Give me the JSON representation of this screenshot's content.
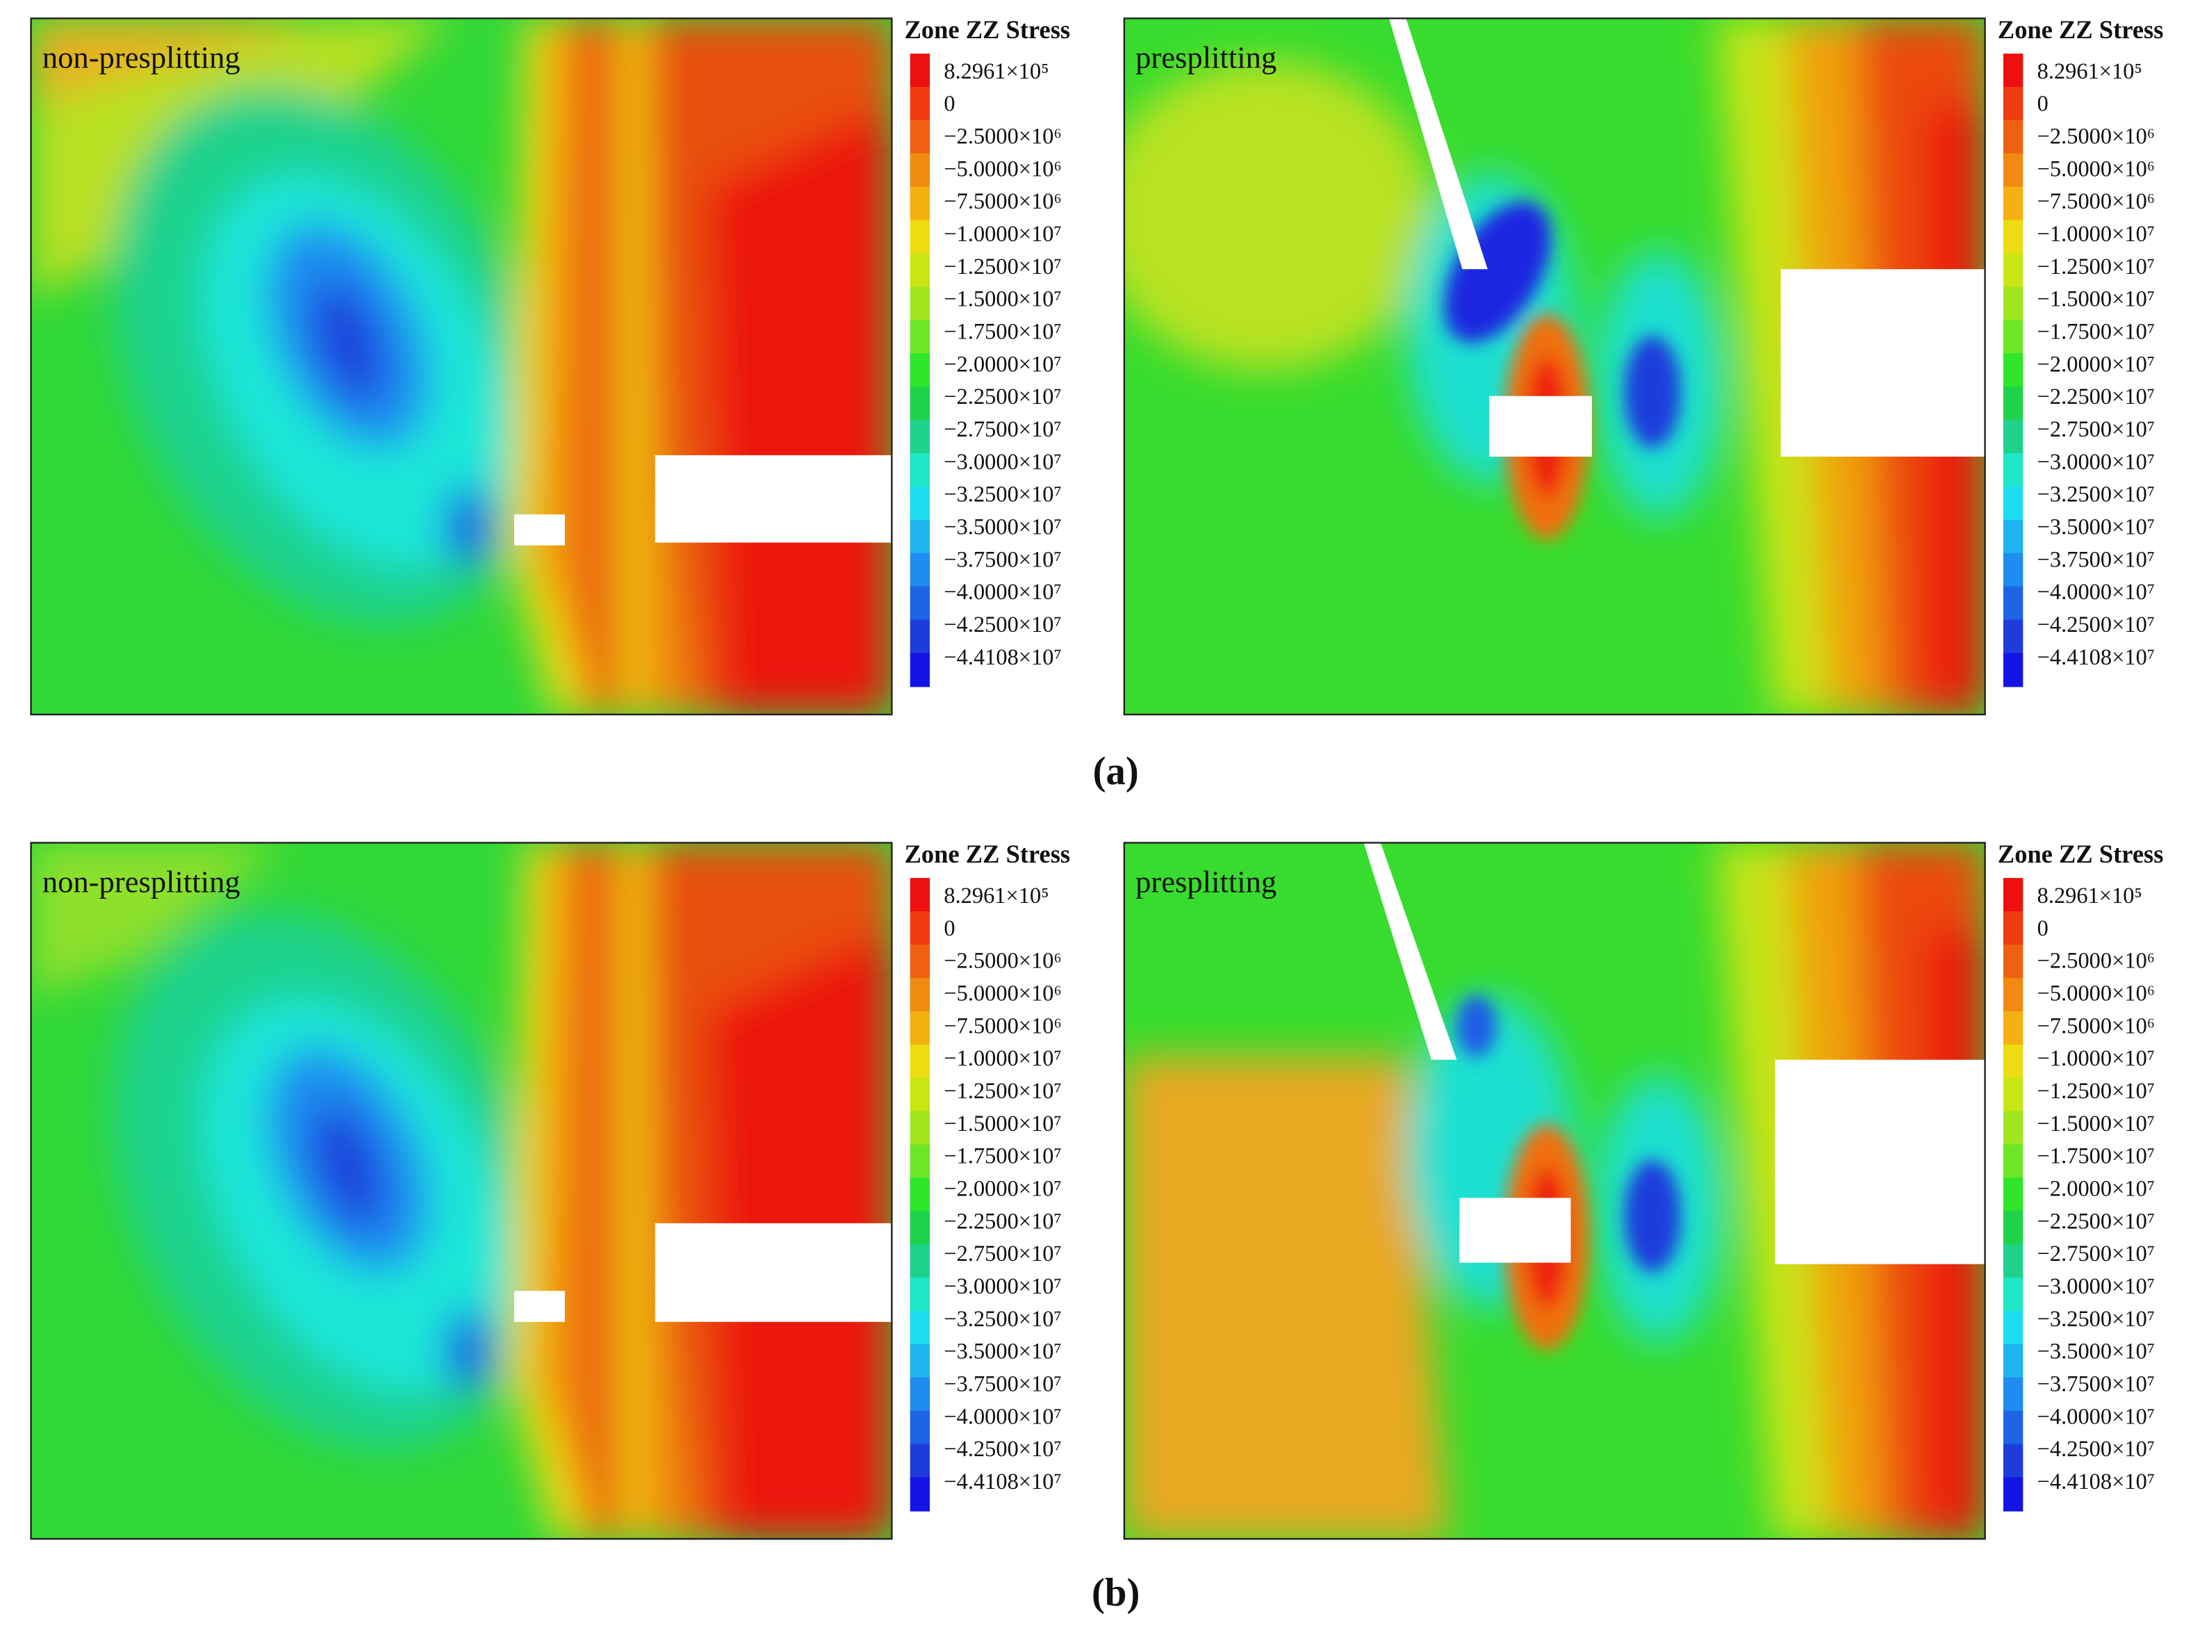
{
  "panels": [
    {
      "label": "non-presplitting",
      "legend": {
        "title": "Zone ZZ Stress",
        "entries": [
          "8.2961×10⁵",
          "0",
          "−2.5000×10⁶",
          "−5.0000×10⁶",
          "−7.5000×10⁶",
          "−1.0000×10⁷",
          "−1.2500×10⁷",
          "−1.5000×10⁷",
          "−1.7500×10⁷",
          "−2.0000×10⁷",
          "−2.2500×10⁷",
          "−2.7500×10⁷",
          "−3.0000×10⁷",
          "−3.2500×10⁷",
          "−3.5000×10⁷",
          "−3.7500×10⁷",
          "−4.0000×10⁷",
          "−4.2500×10⁷",
          "−4.4108×10⁷"
        ]
      }
    },
    {
      "label": "presplitting",
      "legend": {
        "title": "Zone ZZ Stress",
        "entries": [
          "8.2961×10⁵",
          "0",
          "−2.5000×10⁶",
          "−5.0000×10⁶",
          "−7.5000×10⁶",
          "−1.0000×10⁷",
          "−1.2500×10⁷",
          "−1.5000×10⁷",
          "−1.7500×10⁷",
          "−2.0000×10⁷",
          "−2.2500×10⁷",
          "−2.7500×10⁷",
          "−3.0000×10⁷",
          "−3.2500×10⁷",
          "−3.5000×10⁷",
          "−3.7500×10⁷",
          "−4.0000×10⁷",
          "−4.2500×10⁷",
          "−4.4108×10⁷"
        ]
      }
    },
    {
      "label": "non-presplitting",
      "legend": {
        "title": "Zone ZZ Stress",
        "entries": [
          "8.2961×10⁵",
          "0",
          "−2.5000×10⁶",
          "−5.0000×10⁶",
          "−7.5000×10⁶",
          "−1.0000×10⁷",
          "−1.2500×10⁷",
          "−1.5000×10⁷",
          "−1.7500×10⁷",
          "−2.0000×10⁷",
          "−2.2500×10⁷",
          "−2.7500×10⁷",
          "−3.0000×10⁷",
          "−3.2500×10⁷",
          "−3.5000×10⁷",
          "−3.7500×10⁷",
          "−4.0000×10⁷",
          "−4.2500×10⁷",
          "−4.4108×10⁷"
        ]
      }
    },
    {
      "label": "presplitting",
      "legend": {
        "title": "Zone ZZ Stress",
        "entries": [
          "8.2961×10⁵",
          "0",
          "−2.5000×10⁶",
          "−5.0000×10⁶",
          "−7.5000×10⁶",
          "−1.0000×10⁷",
          "−1.2500×10⁷",
          "−1.5000×10⁷",
          "−1.7500×10⁷",
          "−2.0000×10⁷",
          "−2.2500×10⁷",
          "−2.7500×10⁷",
          "−3.0000×10⁷",
          "−3.2500×10⁷",
          "−3.5000×10⁷",
          "−3.7500×10⁷",
          "−4.0000×10⁷",
          "−4.2500×10⁷",
          "−4.4108×10⁷"
        ]
      }
    }
  ],
  "captions": [
    "(a)",
    "(b)"
  ]
}
